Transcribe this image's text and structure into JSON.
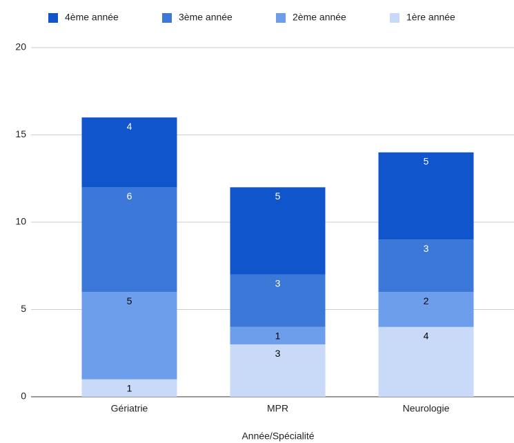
{
  "chart_data": {
    "type": "stacked_bar",
    "xlabel": "Année/Spécialité",
    "categories": [
      "Gériatrie",
      "MPR",
      "Neurologie"
    ],
    "series": [
      {
        "name": "4ème année",
        "color": "#1155cc",
        "label_color": "#ffffff",
        "values": [
          4,
          5,
          5
        ]
      },
      {
        "name": "3ème année",
        "color": "#3c78d8",
        "label_color": "#ffffff",
        "values": [
          6,
          3,
          3
        ]
      },
      {
        "name": "2ème année",
        "color": "#6d9eeb",
        "label_color": "#000000",
        "values": [
          5,
          1,
          2
        ]
      },
      {
        "name": "1ère année",
        "color": "#c9daf8",
        "label_color": "#000000",
        "values": [
          1,
          3,
          4
        ]
      }
    ],
    "ylim": [
      0,
      20
    ],
    "yticks": [
      0,
      5,
      10,
      15,
      20
    ],
    "grid": true,
    "legend": "top"
  }
}
